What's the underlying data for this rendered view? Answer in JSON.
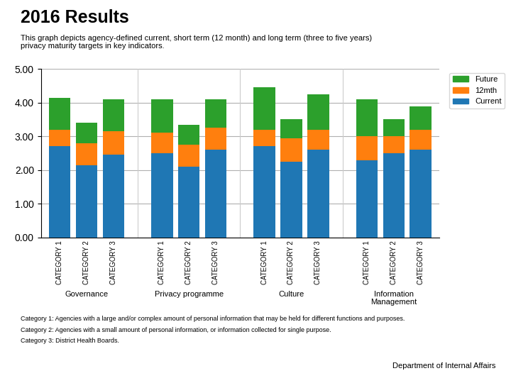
{
  "chart_data": {
    "type": "bar",
    "stacked": true,
    "title": "2016 Results",
    "subtitle": "This graph depicts agency-defined current, short term (12 month) and long term (three to five years)\nprivacy maturity targets in key indicators.",
    "categories": [
      "CATEGORY 1",
      "CATEGORY 2",
      "CATEGORY 3",
      "CATEGORY 1",
      "CATEGORY 2",
      "CATEGORY 3",
      "CATEGORY 1",
      "CATEGORY 2",
      "CATEGORY 3",
      "CATEGORY 1",
      "CATEGORY 2",
      "CATEGORY 3"
    ],
    "groups": [
      "Governance",
      "Privacy programme",
      "Culture",
      "Information\nManagement"
    ],
    "series": [
      {
        "name": "Current",
        "values": [
          2.7,
          2.15,
          2.45,
          2.5,
          2.1,
          2.6,
          2.7,
          2.25,
          2.6,
          2.3,
          2.5,
          2.6
        ]
      },
      {
        "name": "12mth",
        "values": [
          0.5,
          0.65,
          0.7,
          0.6,
          0.65,
          0.65,
          0.5,
          0.7,
          0.6,
          0.7,
          0.5,
          0.6
        ]
      },
      {
        "name": "Future",
        "values": [
          0.95,
          0.6,
          0.95,
          1.0,
          0.6,
          0.85,
          1.25,
          0.55,
          1.05,
          1.1,
          0.5,
          0.68
        ]
      }
    ],
    "ylim": [
      0,
      5.0
    ],
    "yticks": [
      {
        "value": 0.0,
        "label": "0.00"
      },
      {
        "value": 1.0,
        "label": "1.00"
      },
      {
        "value": 2.0,
        "label": "2.00"
      },
      {
        "value": 3.0,
        "label": "3.00"
      },
      {
        "value": 4.0,
        "label": "4.00"
      },
      {
        "value": 5.0,
        "label": "5.00"
      }
    ],
    "grid": true,
    "legend": "upper right",
    "annotations": [
      "Category 1: Agencies with a large and/or complex amount of personal information that may be held for different functions and purposes.",
      "Category 2: Agencies with a small amount of personal information, or information collected for single purpose.",
      "Category 3: District Health Boards.",
      "Department of Internal Affairs"
    ]
  }
}
